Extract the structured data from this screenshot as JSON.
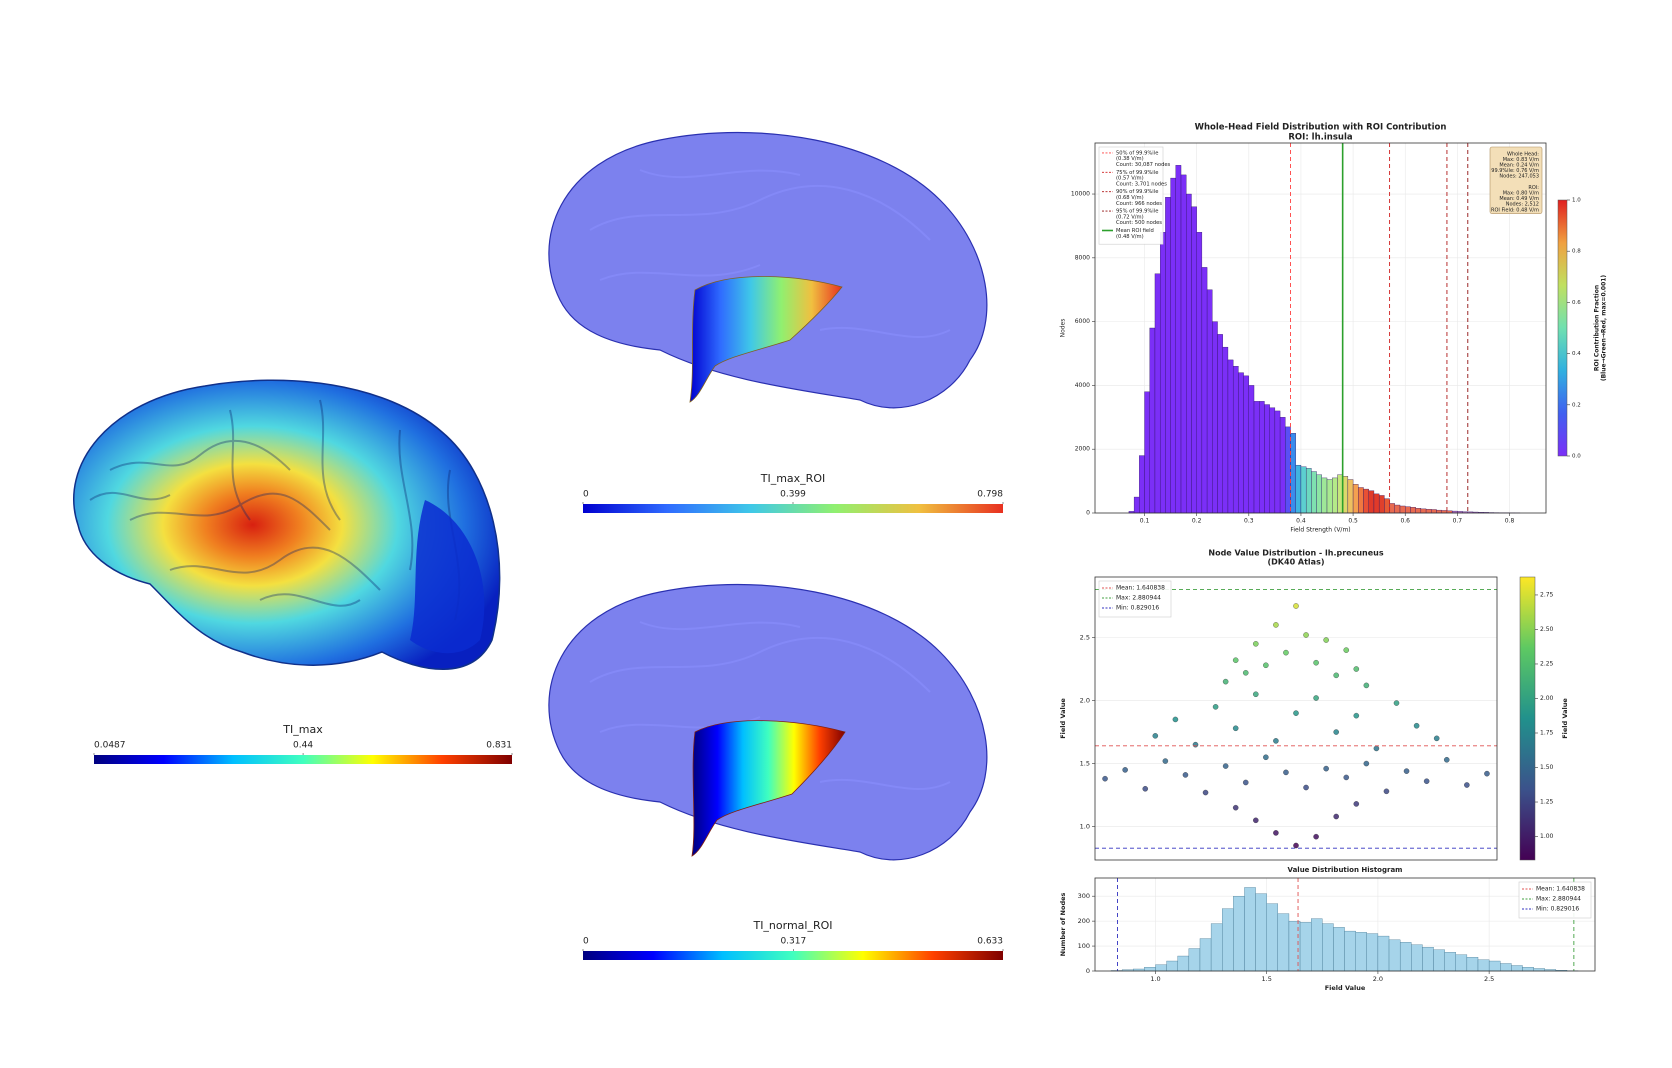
{
  "brain_panels": [
    {
      "label": "TI_max",
      "colorbar_lim": [
        0.0487,
        0.831
      ],
      "colorbar_ticks": [
        0.0487,
        0.44,
        0.831
      ],
      "colormap": [
        "#00007f",
        "#0000ff",
        "#00bfff",
        "#40ffbf",
        "#ffff00",
        "#ff4000",
        "#7f0000"
      ]
    },
    {
      "label": "TI_max_ROI",
      "colorbar_lim": [
        0,
        0.798
      ],
      "colorbar_ticks": [
        0,
        0.399,
        0.798
      ],
      "colormap": [
        "#0000d0",
        "#2f6bff",
        "#3fc8e8",
        "#90f070",
        "#f0c040",
        "#e83020"
      ]
    },
    {
      "label": "TI_normal_ROI",
      "colorbar_lim": [
        0,
        0.633
      ],
      "colorbar_ticks": [
        0,
        0.317,
        0.633
      ],
      "colormap": [
        "#00007f",
        "#0000ff",
        "#00bfff",
        "#40ffbf",
        "#ffff00",
        "#ff4000",
        "#7f0000"
      ]
    }
  ],
  "chart_data": [
    {
      "type": "histogram",
      "title": "Whole-Head Field Distribution with ROI Contribution",
      "subtitle": "ROI: lh.insula",
      "xlabel": "Field Strength (V/m)",
      "ylabel": "Nodes",
      "bins": [
        0.07,
        0.08,
        0.09,
        0.1,
        0.11,
        0.12,
        0.13,
        0.14,
        0.15,
        0.16,
        0.17,
        0.18,
        0.19,
        0.2,
        0.21,
        0.22,
        0.23,
        0.24,
        0.25,
        0.26,
        0.27,
        0.28,
        0.29,
        0.3,
        0.31,
        0.32,
        0.33,
        0.34,
        0.35,
        0.36,
        0.37,
        0.38,
        0.39,
        0.4,
        0.41,
        0.42,
        0.43,
        0.44,
        0.45,
        0.46,
        0.47,
        0.48,
        0.49,
        0.5,
        0.51,
        0.52,
        0.53,
        0.54,
        0.55,
        0.56,
        0.57,
        0.58,
        0.59,
        0.6,
        0.61,
        0.62,
        0.63,
        0.64,
        0.65,
        0.66,
        0.67,
        0.68,
        0.69,
        0.7,
        0.71,
        0.72,
        0.73,
        0.74,
        0.75,
        0.76,
        0.77,
        0.78,
        0.79,
        0.8,
        0.81,
        0.82
      ],
      "counts": [
        50,
        500,
        1800,
        3800,
        5800,
        7500,
        8800,
        9900,
        10500,
        10900,
        10600,
        10000,
        9600,
        8800,
        7700,
        7000,
        6000,
        5600,
        5200,
        4800,
        4600,
        4400,
        4300,
        4000,
        3500,
        3500,
        3400,
        3300,
        3200,
        3000,
        2700,
        2500,
        1500,
        1450,
        1400,
        1300,
        1200,
        1100,
        1050,
        1100,
        1200,
        1150,
        1050,
        900,
        800,
        750,
        700,
        600,
        550,
        450,
        300,
        250,
        220,
        200,
        180,
        150,
        130,
        120,
        110,
        90,
        80,
        70,
        60,
        50,
        40,
        35,
        30,
        25,
        20,
        15,
        12,
        10,
        8,
        5,
        3
      ],
      "colors": [
        "#7b2ff7",
        "#7b2ff7",
        "#7b2ff7",
        "#7b2ff7",
        "#7b2ff7",
        "#7b2ff7",
        "#7b2ff7",
        "#7b2ff7",
        "#7b2ff7",
        "#7b2ff7",
        "#7b2ff7",
        "#7b2ff7",
        "#7b2ff7",
        "#7b2ff7",
        "#7b2ff7",
        "#7b2ff7",
        "#7b2ff7",
        "#7b2ff7",
        "#7b2ff7",
        "#7b2ff7",
        "#7b2ff7",
        "#7b2ff7",
        "#7b2ff7",
        "#7b2ff7",
        "#7b2ff7",
        "#7b2ff7",
        "#7b2ff7",
        "#7b2ff7",
        "#7b2ff7",
        "#7b2ff7",
        "#5a4ff5",
        "#3a8cec",
        "#40b4e0",
        "#5ccfd0",
        "#6cd8c0",
        "#7ee0b0",
        "#8ce4a4",
        "#9ee898",
        "#a8ea90",
        "#b4ea88",
        "#c6e67c",
        "#dcd86c",
        "#eec060",
        "#f4a050",
        "#f07840",
        "#e85034",
        "#e03a2a",
        "#e03a2a",
        "#e0402c",
        "#e85a34",
        "#e86a50",
        "#e86a50",
        "#e86a50",
        "#e86a50",
        "#e86a50",
        "#e86a50",
        "#e86a50",
        "#e86a50",
        "#e86a50",
        "#e86a50",
        "#e86a50",
        "#e86a50",
        "#b070c0",
        "#b070c0",
        "#b070c0",
        "#b070c0",
        "#b070c0",
        "#b070c0",
        "#b070c0",
        "#b070c0",
        "#b070c0",
        "#b070c0",
        "#b070c0",
        "#b070c0",
        "#b070c0"
      ],
      "edgecolor": "#2a1060",
      "xlim": [
        0.005,
        0.87
      ],
      "ylim": [
        0,
        11600
      ],
      "xticks": [
        0.1,
        0.2,
        0.3,
        0.4,
        0.5,
        0.6,
        0.7,
        0.8
      ],
      "yticks": [
        0,
        2000,
        4000,
        6000,
        8000,
        10000
      ],
      "grid": true,
      "vlines": [
        {
          "name": "50% of 99.9%ile",
          "value_label": "(0.38 V/m)",
          "count_label": "Count: 30,087 nodes",
          "x": 0.38,
          "color": "#ff4040",
          "style": "dashed"
        },
        {
          "name": "75% of 99.9%ile",
          "value_label": "(0.57 V/m)",
          "count_label": "Count: 3,701 nodes",
          "x": 0.57,
          "color": "#d02020",
          "style": "dashed"
        },
        {
          "name": "90% of 99.9%ile",
          "value_label": "(0.68 V/m)",
          "count_label": "Count: 966 nodes",
          "x": 0.68,
          "color": "#b01818",
          "style": "dashed"
        },
        {
          "name": "95% of 99.9%ile",
          "value_label": "(0.72 V/m)",
          "count_label": "Count: 500 nodes",
          "x": 0.72,
          "color": "#901010",
          "style": "dashed"
        },
        {
          "name": "Mean ROI field",
          "value_label": "(0.48 V/m)",
          "x": 0.48,
          "color": "#2ca02c",
          "style": "solid"
        }
      ],
      "legend": "upper left",
      "stats_box": [
        "Whole Head:",
        "Max: 0.83 V/m",
        "Mean: 0.24 V/m",
        "99.9%ile: 0.76 V/m",
        "Nodes: 247,053",
        "",
        "ROI:",
        "Max: 0.80 V/m",
        "Mean: 0.49 V/m",
        "Nodes: 2,512",
        "ROI Field: 0.48 V/m"
      ],
      "colorbar": {
        "label": "ROI Contribution Fraction",
        "sublabel": "(Blue→Green→Red, max=0.001)",
        "lim": [
          0,
          1
        ],
        "ticks": [
          {
            "value": 0,
            "label": "0.0"
          },
          0.2,
          0.4,
          0.6,
          0.8,
          {
            "value": 1,
            "label": "1.0"
          }
        ],
        "colormap": [
          "#7b2ff7",
          "#4060f0",
          "#30b0e0",
          "#70e0b0",
          "#c0e060",
          "#f0a040",
          "#e02020"
        ]
      }
    },
    {
      "type": "scatter",
      "title": "Node Value Distribution - lh.precuneus",
      "subtitle": "(DK40 Atlas)",
      "ylabel": "Field Value",
      "x": [
        -0.95,
        -0.85,
        -0.75,
        -0.65,
        -0.55,
        -0.45,
        -0.35,
        -0.25,
        -0.15,
        -0.05,
        0.05,
        0.15,
        0.25,
        0.35,
        0.45,
        0.55,
        0.65,
        0.75,
        0.85,
        0.95,
        -0.7,
        -0.6,
        -0.5,
        -0.4,
        -0.3,
        -0.2,
        -0.1,
        0,
        0.1,
        0.2,
        0.3,
        0.4,
        0.5,
        0.6,
        0.7,
        -0.35,
        -0.3,
        -0.25,
        -0.2,
        -0.15,
        -0.1,
        -0.05,
        0,
        0.05,
        0.1,
        0.15,
        0.2,
        0.25,
        0.3,
        0.35,
        -0.3,
        -0.2,
        -0.1,
        0,
        0.1,
        0.2,
        0.3
      ],
      "y": [
        1.38,
        1.45,
        1.3,
        1.52,
        1.41,
        1.27,
        1.48,
        1.35,
        1.55,
        1.43,
        1.31,
        1.46,
        1.39,
        1.5,
        1.28,
        1.44,
        1.36,
        1.53,
        1.33,
        1.42,
        1.72,
        1.85,
        1.65,
        1.95,
        1.78,
        2.05,
        1.68,
        1.9,
        2.02,
        1.75,
        1.88,
        1.62,
        1.98,
        1.8,
        1.7,
        2.15,
        2.32,
        2.22,
        2.45,
        2.28,
        2.6,
        2.38,
        2.75,
        2.52,
        2.3,
        2.48,
        2.2,
        2.4,
        2.25,
        2.12,
        1.15,
        1.05,
        0.95,
        0.85,
        0.92,
        1.08,
        1.18
      ],
      "xlim": [
        -1,
        1
      ],
      "ylim": [
        0.735,
        2.98
      ],
      "yticks": [
        {
          "value": 1,
          "label": "1.0"
        },
        1.5,
        {
          "value": 2,
          "label": "2.0"
        },
        2.5
      ],
      "grid": true,
      "hlines": [
        {
          "label": "Mean: 1.640838",
          "y": 1.640838,
          "color": "#e05050",
          "style": "dashed"
        },
        {
          "label": "Max: 2.880944",
          "y": 2.880944,
          "color": "#40a040",
          "style": "dashed"
        },
        {
          "label": "Min: 0.829016",
          "y": 0.829016,
          "color": "#3030c0",
          "style": "dashed"
        }
      ],
      "legend": "upper left",
      "colorbar": {
        "label": "Field Value",
        "lim": [
          0.83,
          2.88
        ],
        "ticks": [
          {
            "value": 1,
            "label": "1.00"
          },
          1.25,
          {
            "value": 1.5,
            "label": "1.50"
          },
          1.75,
          {
            "value": 2,
            "label": "2.00"
          },
          2.25,
          {
            "value": 2.5,
            "label": "2.50"
          },
          2.75
        ],
        "colormap": [
          "#440154",
          "#3b528b",
          "#21918c",
          "#5ec962",
          "#fde725"
        ]
      }
    },
    {
      "type": "histogram",
      "title": "Value Distribution Histogram",
      "xlabel": "Field Value",
      "ylabel": "Number of Nodes",
      "bins": [
        0.8,
        0.85,
        0.9,
        0.95,
        1,
        1.05,
        1.1,
        1.15,
        1.2,
        1.25,
        1.3,
        1.35,
        1.4,
        1.45,
        1.5,
        1.55,
        1.6,
        1.65,
        1.7,
        1.75,
        1.8,
        1.85,
        1.9,
        1.95,
        2,
        2.05,
        2.1,
        2.15,
        2.2,
        2.25,
        2.3,
        2.35,
        2.4,
        2.45,
        2.5,
        2.55,
        2.6,
        2.65,
        2.7,
        2.75,
        2.8,
        2.85,
        2.9
      ],
      "counts": [
        2,
        5,
        8,
        15,
        25,
        40,
        60,
        90,
        130,
        190,
        250,
        300,
        335,
        310,
        270,
        230,
        200,
        195,
        210,
        190,
        175,
        160,
        155,
        150,
        140,
        125,
        115,
        105,
        95,
        85,
        75,
        65,
        55,
        45,
        40,
        30,
        22,
        15,
        10,
        6,
        3,
        1
      ],
      "color": "#a6d4ea",
      "edgecolor": "#3a6e8a",
      "xlim": [
        0.728,
        2.976
      ],
      "ylim": [
        0,
        373
      ],
      "xticks": [
        {
          "value": 1,
          "label": "1.0"
        },
        1.5,
        {
          "value": 2,
          "label": "2.0"
        },
        2.5
      ],
      "yticks": [
        0,
        100,
        200,
        300
      ],
      "grid": true,
      "vlines": [
        {
          "label": "Mean: 1.640838",
          "x": 1.640838,
          "color": "#e05050",
          "style": "dashed"
        },
        {
          "label": "Max: 2.880944",
          "x": 2.880944,
          "color": "#40a040",
          "style": "dashed"
        },
        {
          "label": "Min: 0.829016",
          "x": 0.829016,
          "color": "#3030c0",
          "style": "dashed"
        }
      ],
      "legend": "upper right"
    }
  ]
}
